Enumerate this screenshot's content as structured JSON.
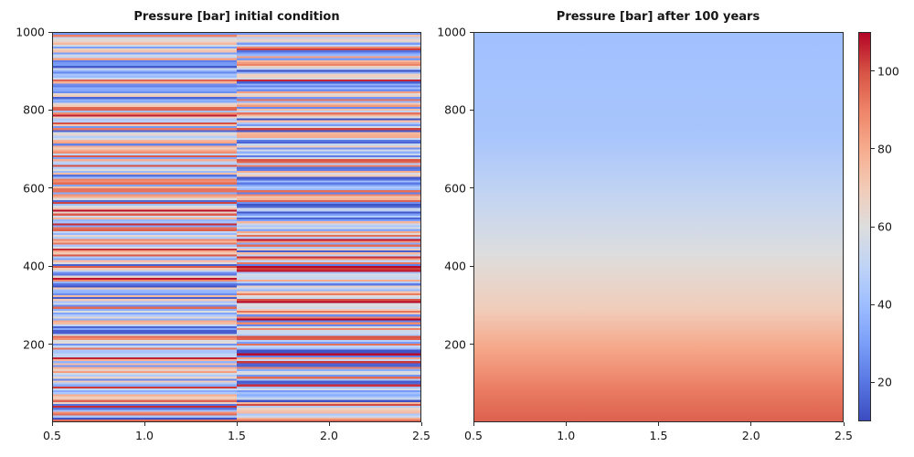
{
  "figure": {
    "background": "#ffffff",
    "text_color": "#161616",
    "spine_color": "#2b2b2b"
  },
  "colormap": {
    "name": "coolwarm",
    "stops": [
      "#3b4cc0",
      "#5977e3",
      "#7b9ff9",
      "#9ebeff",
      "#c0d4f5",
      "#dddddd",
      "#f2cbb7",
      "#f7ac8e",
      "#ee8468",
      "#d65244",
      "#b40426"
    ]
  },
  "chart_data": [
    {
      "type": "heatmap",
      "title": "Pressure [bar] initial condition",
      "xlabel": "",
      "ylabel": "",
      "xlim": [
        0.5,
        2.5
      ],
      "ylim": [
        0,
        1000
      ],
      "x_tick_values": [
        0.5,
        1.0,
        1.5,
        2.0,
        2.5
      ],
      "x_tick_labels": [
        "0.5",
        "1.0",
        "1.5",
        "2.0",
        "2.5"
      ],
      "y_tick_values": [
        1000,
        800,
        600,
        400,
        200
      ],
      "y_tick_labels": [
        "1000",
        "800",
        "600",
        "400",
        "200"
      ],
      "vmin": 10,
      "vmax": 110,
      "field": "random_layered",
      "n_layers": 200,
      "n_columns": 2,
      "column_boundary_x": 1.5,
      "value_distribution": "uniform(10,110) bar",
      "random_seed": 1337
    },
    {
      "type": "heatmap",
      "title": "Pressure [bar] after 100 years",
      "xlabel": "",
      "ylabel": "",
      "xlim": [
        0.5,
        2.5
      ],
      "ylim": [
        0,
        1000
      ],
      "x_tick_values": [
        0.5,
        1.0,
        1.5,
        2.0,
        2.5
      ],
      "x_tick_labels": [
        "0.5",
        "1.0",
        "1.5",
        "2.0",
        "2.5"
      ],
      "y_tick_values": [
        1000,
        800,
        600,
        400,
        200
      ],
      "y_tick_labels": [
        "1000",
        "800",
        "600",
        "400",
        "200"
      ],
      "vmin": 10,
      "vmax": 110,
      "field": "smooth_vertical_gradient",
      "profile_top_to_bottom": [
        {
          "pos": 0.0,
          "value": 41
        },
        {
          "pos": 0.27,
          "value": 43
        },
        {
          "pos": 0.44,
          "value": 52
        },
        {
          "pos": 0.57,
          "value": 60
        },
        {
          "pos": 0.71,
          "value": 69
        },
        {
          "pos": 0.81,
          "value": 81
        },
        {
          "pos": 0.925,
          "value": 92
        },
        {
          "pos": 1.0,
          "value": 97
        }
      ]
    }
  ],
  "colorbar": {
    "orientation": "vertical",
    "vmin": 10,
    "vmax": 110,
    "tick_values": [
      100,
      80,
      60,
      40,
      20
    ],
    "tick_labels": [
      "100",
      "80",
      "60",
      "40",
      "20"
    ]
  }
}
